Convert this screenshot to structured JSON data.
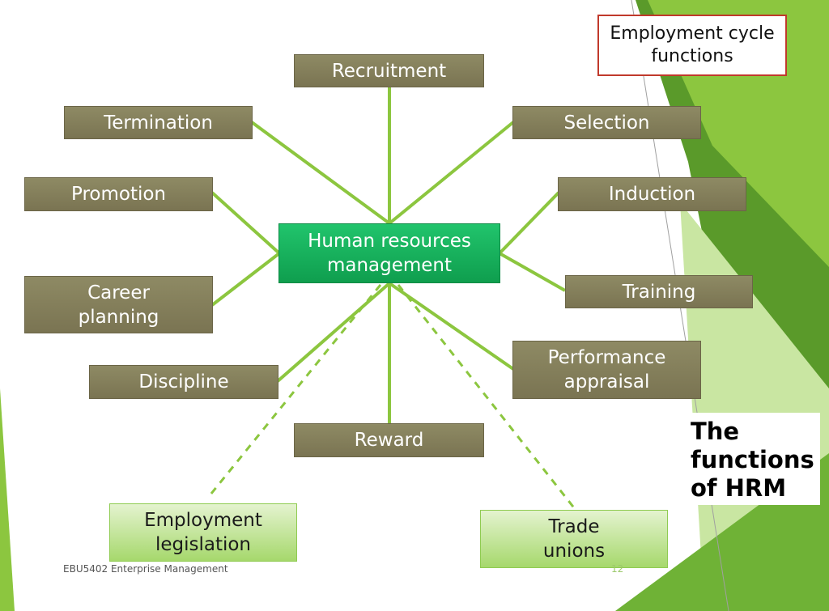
{
  "callout": {
    "line1": "Employment cycle",
    "line2": "functions"
  },
  "title": {
    "line1": "The",
    "line2": "functions",
    "line3": "of HRM"
  },
  "center": {
    "line1": "Human resources",
    "line2": "management"
  },
  "functions": {
    "recruitment": "Recruitment",
    "selection": "Selection",
    "induction": "Induction",
    "training": "Training",
    "performance_line1": "Performance",
    "performance_line2": "appraisal",
    "reward": "Reward",
    "discipline": "Discipline",
    "career_line1": "Career",
    "career_line2": "planning",
    "promotion": "Promotion",
    "termination": "Termination"
  },
  "external": {
    "legislation_line1": "Employment",
    "legislation_line2": "legislation",
    "unions_line1": "Trade",
    "unions_line2": "unions"
  },
  "footer": {
    "course": "EBU5402 Enterprise Management",
    "page": "12"
  },
  "colors": {
    "function_box": "#7f7956",
    "center_box": "#17b45c",
    "external_box": "#b5de80",
    "connector": "#8cc63f",
    "callout_border": "#c0392b"
  }
}
